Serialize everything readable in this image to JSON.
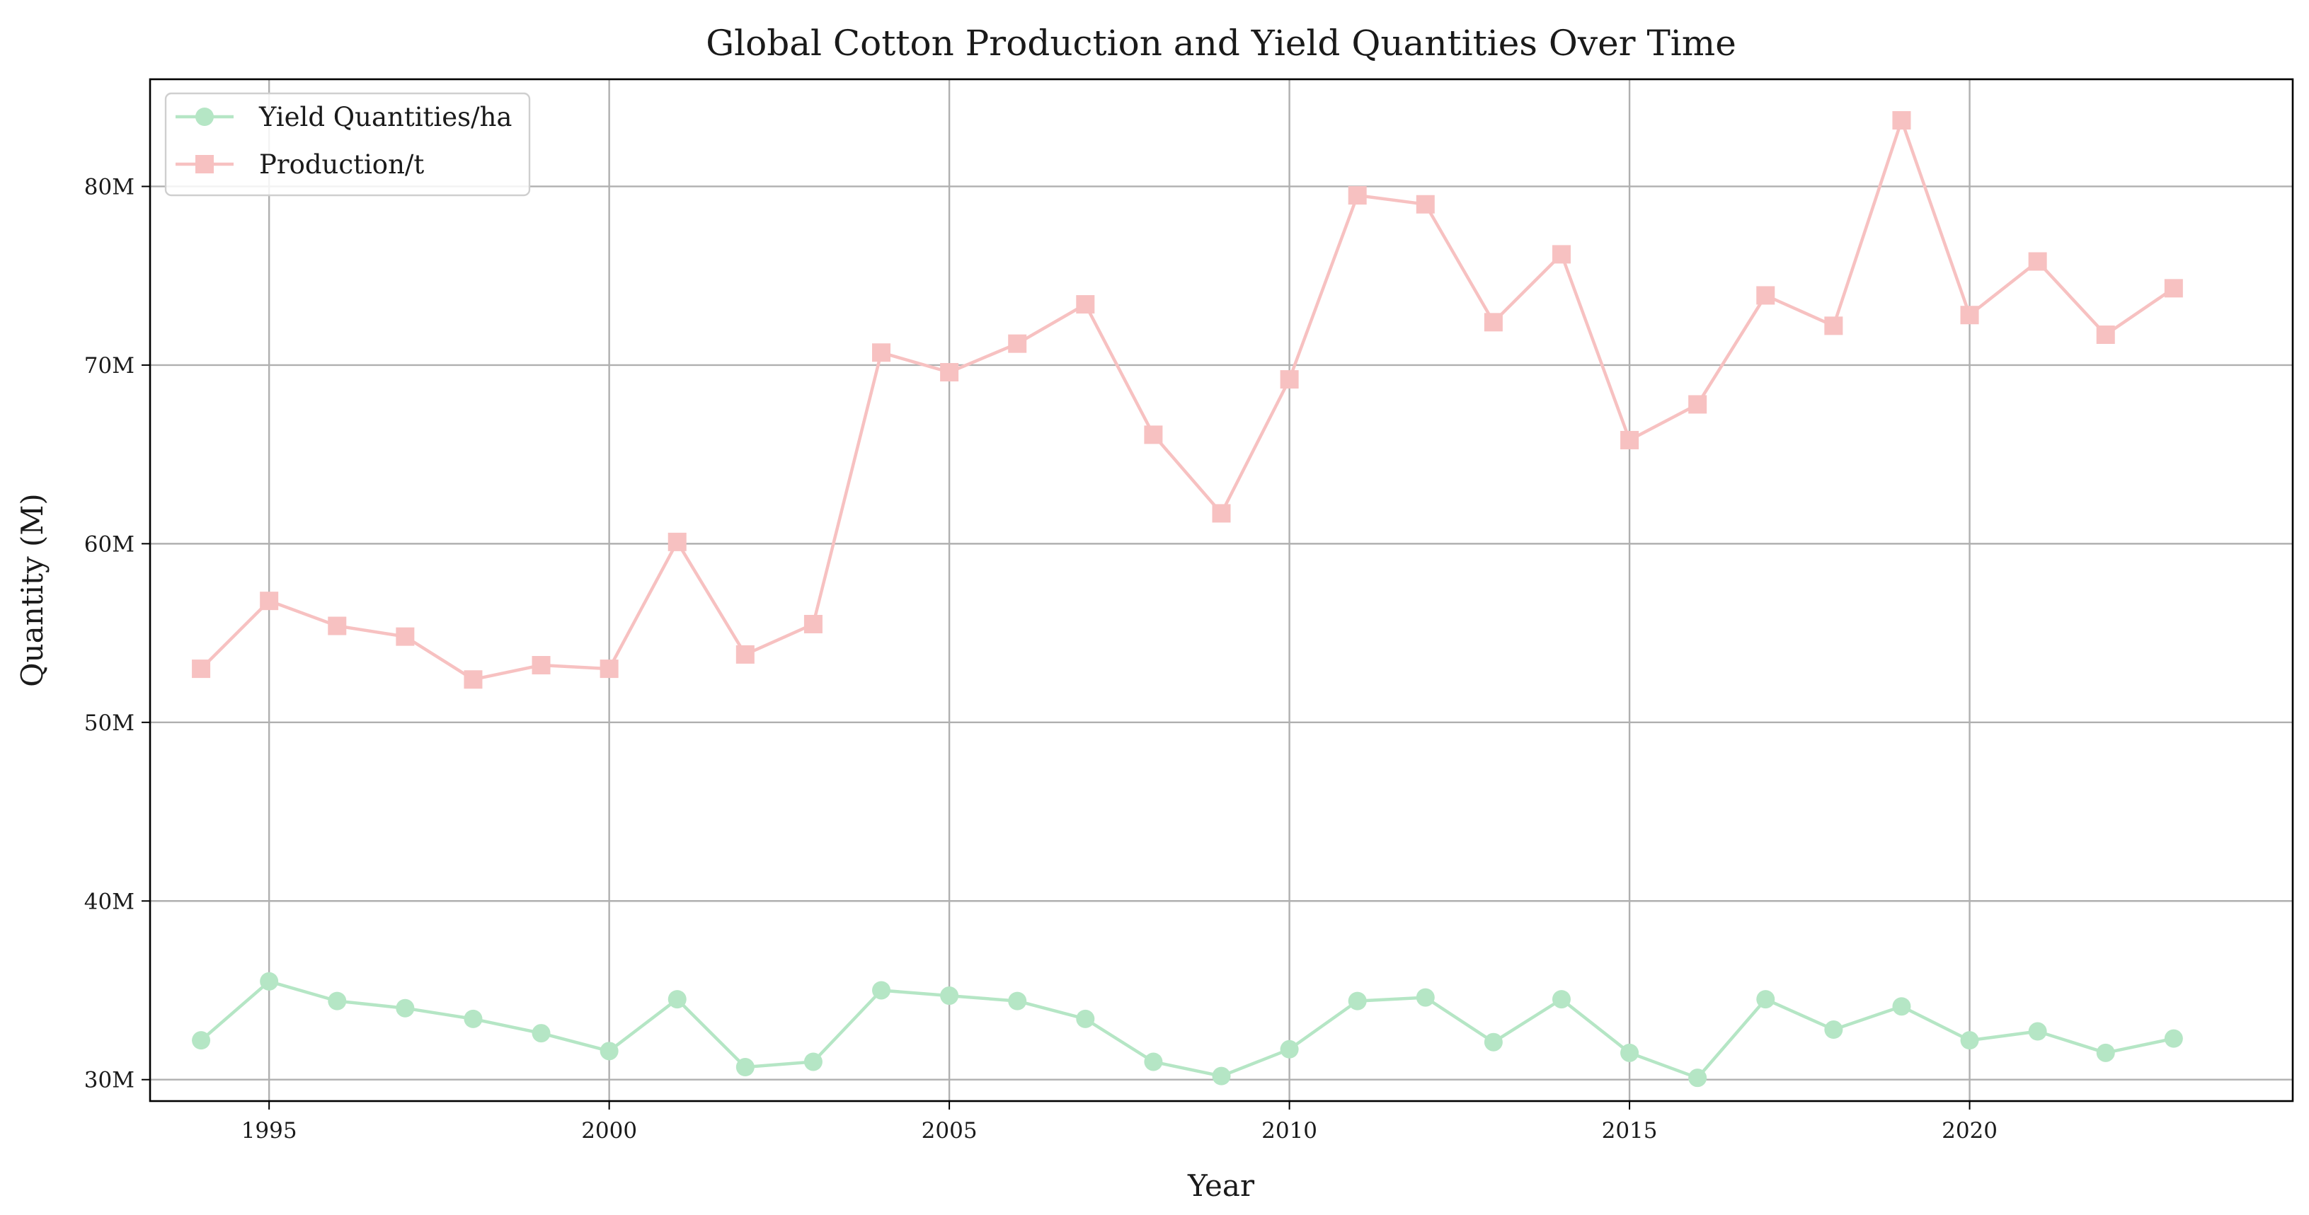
{
  "chart_data": {
    "type": "line",
    "title": "Global Cotton Production and Yield Quantities Over Time",
    "xlabel": "Year",
    "ylabel": "Quantity (M)",
    "xlim": [
      1993.25,
      2024.75
    ],
    "ylim": [
      28.8,
      86.0
    ],
    "x_ticks": [
      1995,
      2000,
      2005,
      2010,
      2015,
      2020
    ],
    "y_ticks": [
      30,
      40,
      50,
      60,
      70,
      80
    ],
    "y_tick_labels": [
      "30M",
      "40M",
      "50M",
      "60M",
      "70M",
      "80M"
    ],
    "grid": true,
    "legend_position": "top-left",
    "x": [
      1994,
      1995,
      1996,
      1997,
      1998,
      1999,
      2000,
      2001,
      2002,
      2003,
      2004,
      2005,
      2006,
      2007,
      2008,
      2009,
      2010,
      2011,
      2012,
      2013,
      2014,
      2015,
      2016,
      2017,
      2018,
      2019,
      2020,
      2021,
      2022,
      2023
    ],
    "series": [
      {
        "name": "Yield Quantities/ha",
        "color": "#b5e6c5",
        "marker": "circle",
        "values": [
          32.2,
          35.5,
          34.4,
          34.0,
          33.4,
          32.6,
          31.6,
          34.5,
          30.7,
          31.0,
          35.0,
          34.7,
          34.4,
          33.4,
          31.0,
          30.2,
          31.7,
          34.4,
          34.6,
          32.1,
          34.5,
          31.5,
          30.1,
          34.5,
          32.8,
          34.1,
          32.2,
          32.7,
          31.5,
          32.3
        ]
      },
      {
        "name": "Production/t",
        "color": "#f7c1c1",
        "marker": "square",
        "values": [
          53.0,
          56.8,
          55.4,
          54.8,
          52.4,
          53.2,
          53.0,
          60.1,
          53.8,
          55.5,
          70.7,
          69.6,
          71.2,
          73.4,
          66.1,
          61.7,
          69.2,
          79.5,
          79.0,
          72.4,
          76.2,
          65.8,
          67.8,
          73.9,
          72.2,
          83.7,
          72.8,
          75.8,
          71.7,
          74.3
        ]
      }
    ]
  }
}
